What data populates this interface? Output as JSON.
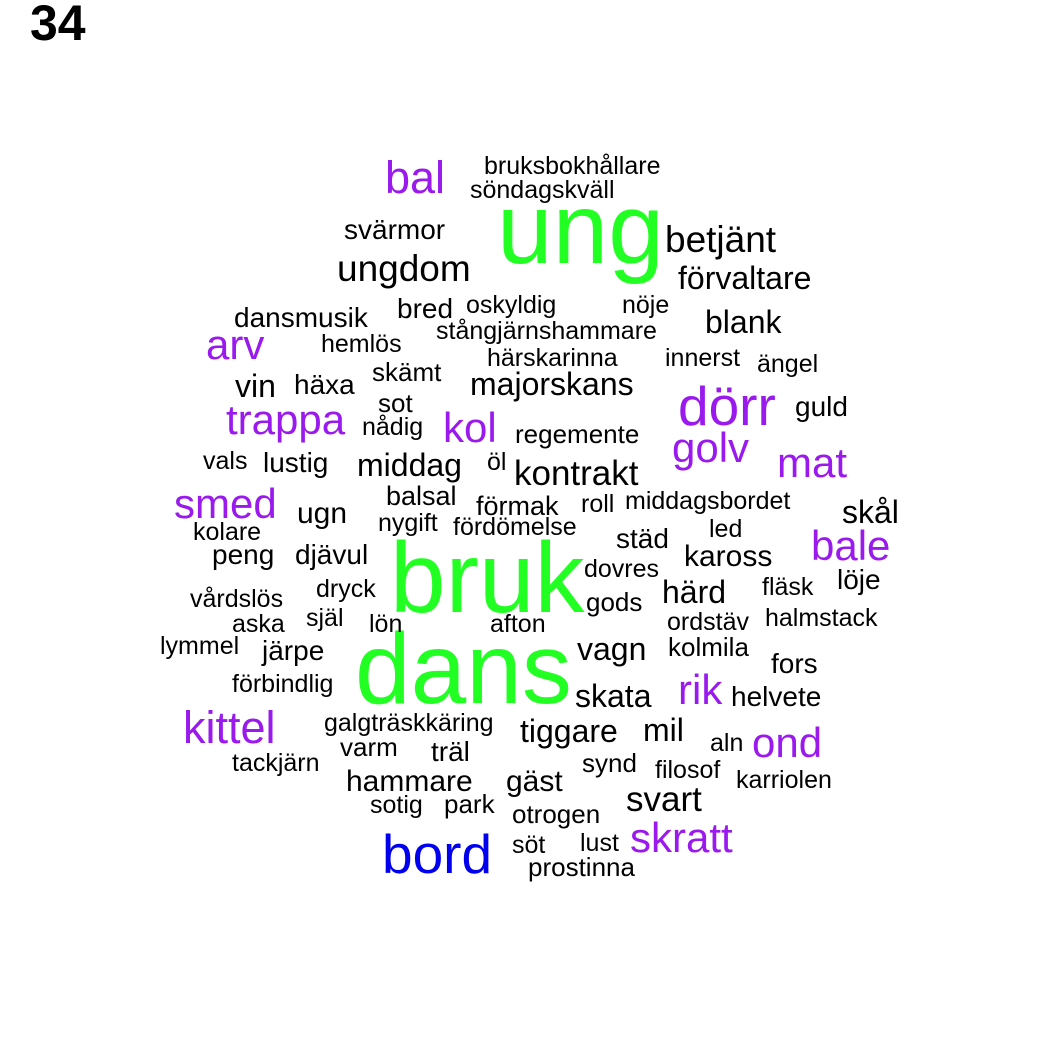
{
  "panel_label": "34",
  "colors": {
    "green": "#22ff22",
    "blue": "#0000ee",
    "purple": "#9a1aee",
    "black": "#000000"
  },
  "words": [
    {
      "text": "ung",
      "size": 100,
      "color": "green"
    },
    {
      "text": "bruk",
      "size": 100,
      "color": "green"
    },
    {
      "text": "dans",
      "size": 100,
      "color": "green"
    },
    {
      "text": "bord",
      "size": 55,
      "color": "blue"
    },
    {
      "text": "dörr",
      "size": 55,
      "color": "purple"
    },
    {
      "text": "bal",
      "size": 45,
      "color": "purple"
    },
    {
      "text": "kittel",
      "size": 45,
      "color": "purple"
    },
    {
      "text": "skratt",
      "size": 42,
      "color": "purple"
    },
    {
      "text": "trappa",
      "size": 42,
      "color": "purple"
    },
    {
      "text": "kol",
      "size": 42,
      "color": "purple"
    },
    {
      "text": "golv",
      "size": 42,
      "color": "purple"
    },
    {
      "text": "mat",
      "size": 42,
      "color": "purple"
    },
    {
      "text": "smed",
      "size": 42,
      "color": "purple"
    },
    {
      "text": "arv",
      "size": 42,
      "color": "purple"
    },
    {
      "text": "bale",
      "size": 42,
      "color": "purple"
    },
    {
      "text": "rik",
      "size": 42,
      "color": "purple"
    },
    {
      "text": "ond",
      "size": 42,
      "color": "purple"
    },
    {
      "text": "betjänt",
      "size": 37,
      "color": "black"
    },
    {
      "text": "ungdom",
      "size": 37,
      "color": "black"
    },
    {
      "text": "kontrakt",
      "size": 35,
      "color": "black"
    },
    {
      "text": "svart",
      "size": 35,
      "color": "black"
    },
    {
      "text": "förvaltare",
      "size": 32,
      "color": "black"
    },
    {
      "text": "blank",
      "size": 32,
      "color": "black"
    },
    {
      "text": "vin",
      "size": 32,
      "color": "black"
    },
    {
      "text": "majorskans",
      "size": 32,
      "color": "black"
    },
    {
      "text": "middag",
      "size": 32,
      "color": "black"
    },
    {
      "text": "skål",
      "size": 32,
      "color": "black"
    },
    {
      "text": "skata",
      "size": 32,
      "color": "black"
    },
    {
      "text": "mil",
      "size": 32,
      "color": "black"
    },
    {
      "text": "tiggare",
      "size": 32,
      "color": "black"
    },
    {
      "text": "vagn",
      "size": 32,
      "color": "black"
    },
    {
      "text": "härd",
      "size": 32,
      "color": "black"
    },
    {
      "text": "kaross",
      "size": 30,
      "color": "black"
    },
    {
      "text": "ugn",
      "size": 30,
      "color": "black"
    },
    {
      "text": "gäst",
      "size": 30,
      "color": "black"
    },
    {
      "text": "hammare",
      "size": 30,
      "color": "black"
    },
    {
      "text": "svärmor",
      "size": 28,
      "color": "black"
    },
    {
      "text": "bred",
      "size": 28,
      "color": "black"
    },
    {
      "text": "dansmusik",
      "size": 28,
      "color": "black"
    },
    {
      "text": "häxa",
      "size": 28,
      "color": "black"
    },
    {
      "text": "guld",
      "size": 28,
      "color": "black"
    },
    {
      "text": "lustig",
      "size": 28,
      "color": "black"
    },
    {
      "text": "peng",
      "size": 28,
      "color": "black"
    },
    {
      "text": "djävul",
      "size": 28,
      "color": "black"
    },
    {
      "text": "städ",
      "size": 28,
      "color": "black"
    },
    {
      "text": "löje",
      "size": 28,
      "color": "black"
    },
    {
      "text": "fors",
      "size": 28,
      "color": "black"
    },
    {
      "text": "helvete",
      "size": 28,
      "color": "black"
    },
    {
      "text": "järpe",
      "size": 28,
      "color": "black"
    },
    {
      "text": "träl",
      "size": 28,
      "color": "black"
    },
    {
      "text": "balsal",
      "size": 27,
      "color": "black"
    },
    {
      "text": "förmak",
      "size": 27,
      "color": "black"
    },
    {
      "text": "regemente",
      "size": 26,
      "color": "black"
    },
    {
      "text": "kolmila",
      "size": 26,
      "color": "black"
    },
    {
      "text": "skämt",
      "size": 26,
      "color": "black"
    },
    {
      "text": "sot",
      "size": 26,
      "color": "black"
    },
    {
      "text": "gods",
      "size": 26,
      "color": "black"
    },
    {
      "text": "synd",
      "size": 26,
      "color": "black"
    },
    {
      "text": "varm",
      "size": 26,
      "color": "black"
    },
    {
      "text": "park",
      "size": 26,
      "color": "black"
    },
    {
      "text": "otrogen",
      "size": 26,
      "color": "black"
    },
    {
      "text": "prostinna",
      "size": 26,
      "color": "black"
    },
    {
      "text": "nådig",
      "size": 25,
      "color": "black"
    },
    {
      "text": "öl",
      "size": 25,
      "color": "black"
    },
    {
      "text": "själ",
      "size": 25,
      "color": "black"
    },
    {
      "text": "lön",
      "size": 25,
      "color": "black"
    },
    {
      "text": "lust",
      "size": 25,
      "color": "black"
    },
    {
      "text": "söt",
      "size": 25,
      "color": "black"
    },
    {
      "text": "sotig",
      "size": 25,
      "color": "black"
    },
    {
      "text": "bruksbokhållare",
      "size": 25,
      "color": "black"
    },
    {
      "text": "söndagskväll",
      "size": 25,
      "color": "black"
    },
    {
      "text": "oskyldig",
      "size": 25,
      "color": "black"
    },
    {
      "text": "nöje",
      "size": 25,
      "color": "black"
    },
    {
      "text": "stångjärnshammare",
      "size": 25,
      "color": "black"
    },
    {
      "text": "hemlös",
      "size": 25,
      "color": "black"
    },
    {
      "text": "härskarinna",
      "size": 25,
      "color": "black"
    },
    {
      "text": "innerst",
      "size": 25,
      "color": "black"
    },
    {
      "text": "ängel",
      "size": 25,
      "color": "black"
    },
    {
      "text": "vals",
      "size": 25,
      "color": "black"
    },
    {
      "text": "roll",
      "size": 25,
      "color": "black"
    },
    {
      "text": "middagsbordet",
      "size": 25,
      "color": "black"
    },
    {
      "text": "kolare",
      "size": 25,
      "color": "black"
    },
    {
      "text": "nygift",
      "size": 25,
      "color": "black"
    },
    {
      "text": "fördömelse",
      "size": 25,
      "color": "black"
    },
    {
      "text": "led",
      "size": 25,
      "color": "black"
    },
    {
      "text": "dovres",
      "size": 25,
      "color": "black"
    },
    {
      "text": "dryck",
      "size": 25,
      "color": "black"
    },
    {
      "text": "fläsk",
      "size": 25,
      "color": "black"
    },
    {
      "text": "vårdslös",
      "size": 25,
      "color": "black"
    },
    {
      "text": "aska",
      "size": 25,
      "color": "black"
    },
    {
      "text": "afton",
      "size": 25,
      "color": "black"
    },
    {
      "text": "ordstäv",
      "size": 25,
      "color": "black"
    },
    {
      "text": "halmstack",
      "size": 25,
      "color": "black"
    },
    {
      "text": "lymmel",
      "size": 25,
      "color": "black"
    },
    {
      "text": "förbindlig",
      "size": 25,
      "color": "black"
    },
    {
      "text": "galgträskkäring",
      "size": 25,
      "color": "black"
    },
    {
      "text": "aln",
      "size": 25,
      "color": "black"
    },
    {
      "text": "tackjärn",
      "size": 25,
      "color": "black"
    },
    {
      "text": "filosof",
      "size": 25,
      "color": "black"
    },
    {
      "text": "karriolen",
      "size": 25,
      "color": "black"
    }
  ]
}
